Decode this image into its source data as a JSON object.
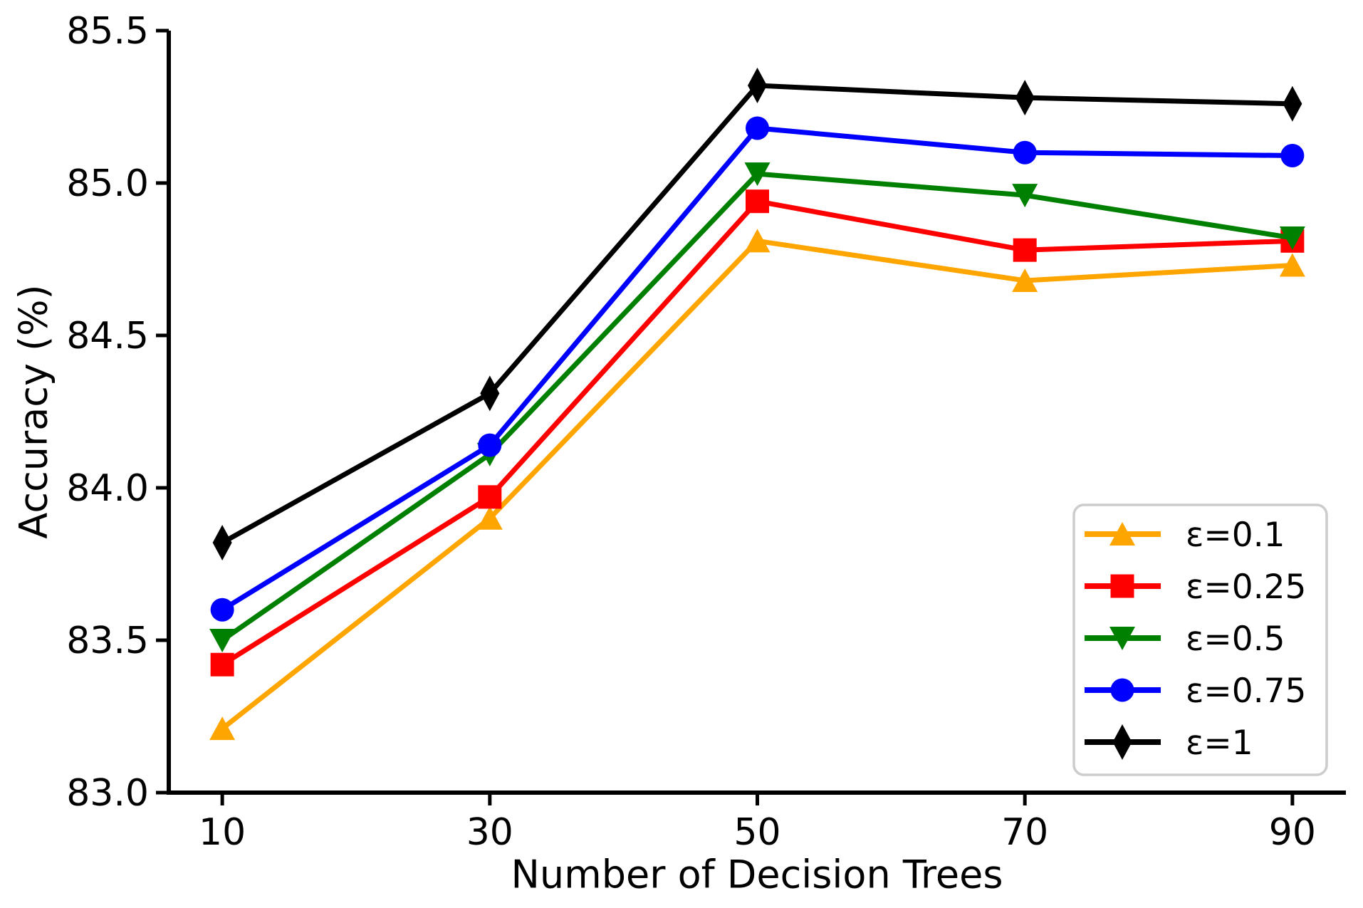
{
  "chart_data": {
    "type": "line",
    "title": "",
    "xlabel": "Number of Decision Trees",
    "ylabel": "Accuracy (%)",
    "x": [
      10,
      30,
      50,
      70,
      90
    ],
    "xtick_labels": [
      "10",
      "30",
      "50",
      "70",
      "90"
    ],
    "yticks": [
      83.0,
      83.5,
      84.0,
      84.5,
      85.0,
      85.5
    ],
    "ytick_labels": [
      "83.0",
      "83.5",
      "84.0",
      "84.5",
      "85.0",
      "85.5"
    ],
    "xlim": [
      6,
      94
    ],
    "ylim": [
      83.0,
      85.5
    ],
    "grid": false,
    "legend_position": "lower right",
    "axis_color": "#000000",
    "legend_border_color": "#cccccc",
    "series": [
      {
        "name": "ε=0.1",
        "color": "#FFA500",
        "marker": "triangle-up",
        "values": [
          83.21,
          83.9,
          84.81,
          84.68,
          84.73
        ]
      },
      {
        "name": "ε=0.25",
        "color": "#FF0000",
        "marker": "square",
        "values": [
          83.42,
          83.97,
          84.94,
          84.78,
          84.81
        ]
      },
      {
        "name": "ε=0.5",
        "color": "#008000",
        "marker": "triangle-down",
        "values": [
          83.5,
          84.11,
          85.03,
          84.96,
          84.82
        ]
      },
      {
        "name": "ε=0.75",
        "color": "#0000FF",
        "marker": "circle",
        "values": [
          83.6,
          84.14,
          85.18,
          85.1,
          85.09
        ]
      },
      {
        "name": "ε=1",
        "color": "#000000",
        "marker": "diamond-thin",
        "values": [
          83.82,
          84.31,
          85.32,
          85.28,
          85.26
        ]
      }
    ]
  }
}
